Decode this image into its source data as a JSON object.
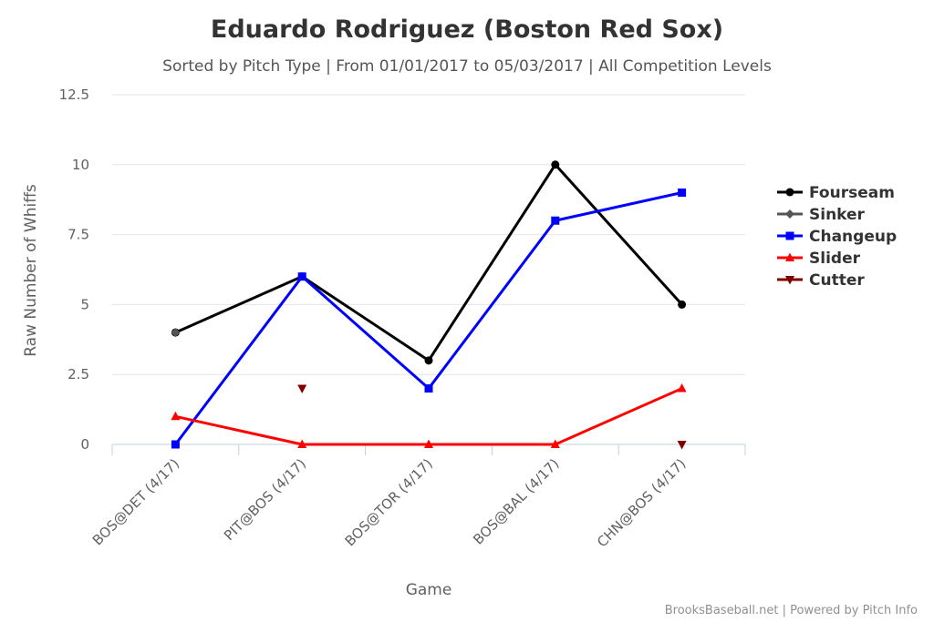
{
  "chart_data": {
    "type": "line",
    "title": "Eduardo Rodriguez (Boston Red Sox)",
    "subtitle": "Sorted by Pitch Type | From 01/01/2017 to 05/03/2017 | All Competition Levels",
    "xlabel": "Game",
    "ylabel": "Raw Number of Whiffs",
    "categories": [
      "BOS@DET (4/17)",
      "PIT@BOS (4/17)",
      "BOS@TOR (4/17)",
      "BOS@BAL (4/17)",
      "CHN@BOS (4/17)"
    ],
    "ylim": [
      0,
      12.5
    ],
    "yticks": [
      0,
      2.5,
      5,
      7.5,
      10,
      12.5
    ],
    "ytick_labels": [
      "0",
      "2.5",
      "5",
      "7.5",
      "10",
      "12.5"
    ],
    "grid": true,
    "legend_position": "right",
    "series": [
      {
        "name": "Fourseam",
        "values": [
          4,
          6,
          3,
          10,
          5
        ],
        "color": "#000000",
        "marker": "circle",
        "line": true
      },
      {
        "name": "Sinker",
        "values": [
          4,
          null,
          null,
          null,
          null
        ],
        "color": "#555555",
        "marker": "diamond",
        "line": false
      },
      {
        "name": "Changeup",
        "values": [
          0,
          6,
          2,
          8,
          9
        ],
        "color": "#0000ff",
        "marker": "square",
        "line": true
      },
      {
        "name": "Slider",
        "values": [
          1,
          0,
          0,
          0,
          2
        ],
        "color": "#ff0000",
        "marker": "triangle",
        "line": true
      },
      {
        "name": "Cutter",
        "values": [
          null,
          2,
          null,
          null,
          0
        ],
        "color": "#800000",
        "marker": "triangle-down",
        "line": false
      }
    ]
  },
  "credits": "BrooksBaseball.net | Powered by Pitch Info"
}
